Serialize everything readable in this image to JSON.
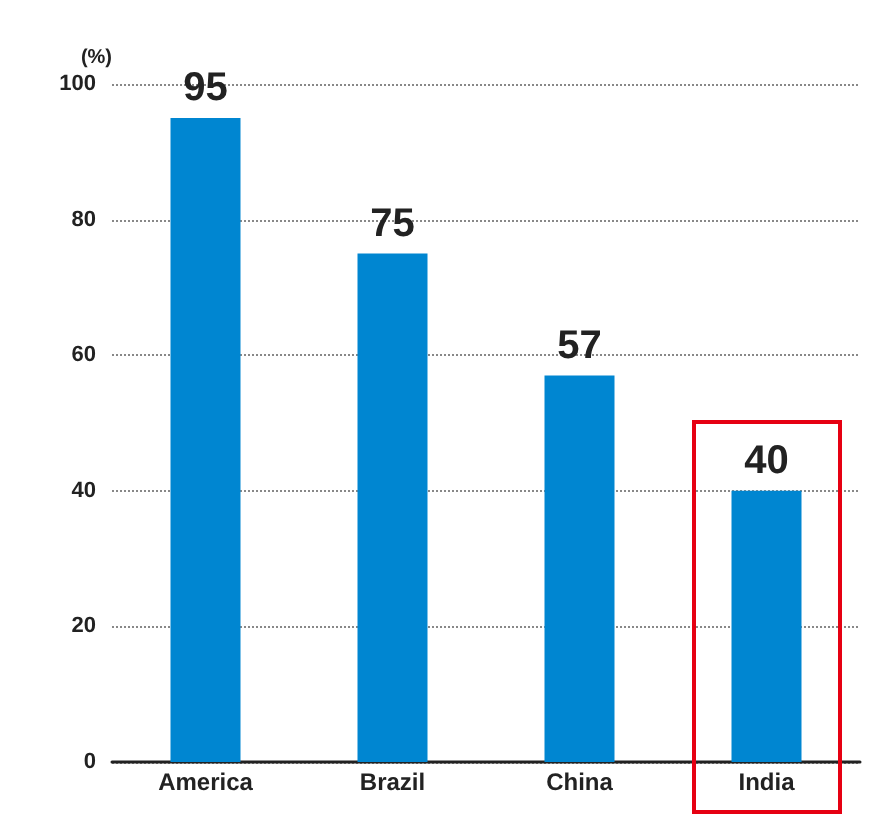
{
  "chart_data": {
    "type": "bar",
    "ylabel": "(%)",
    "categories": [
      "America",
      "Brazil",
      "China",
      "India"
    ],
    "values": [
      95,
      75,
      57,
      40
    ],
    "color": "#0086d1",
    "ylim": [
      0,
      100
    ],
    "yticks": [
      0,
      20,
      40,
      60,
      80,
      100
    ],
    "grid": "y",
    "data_labels": true
  }
}
